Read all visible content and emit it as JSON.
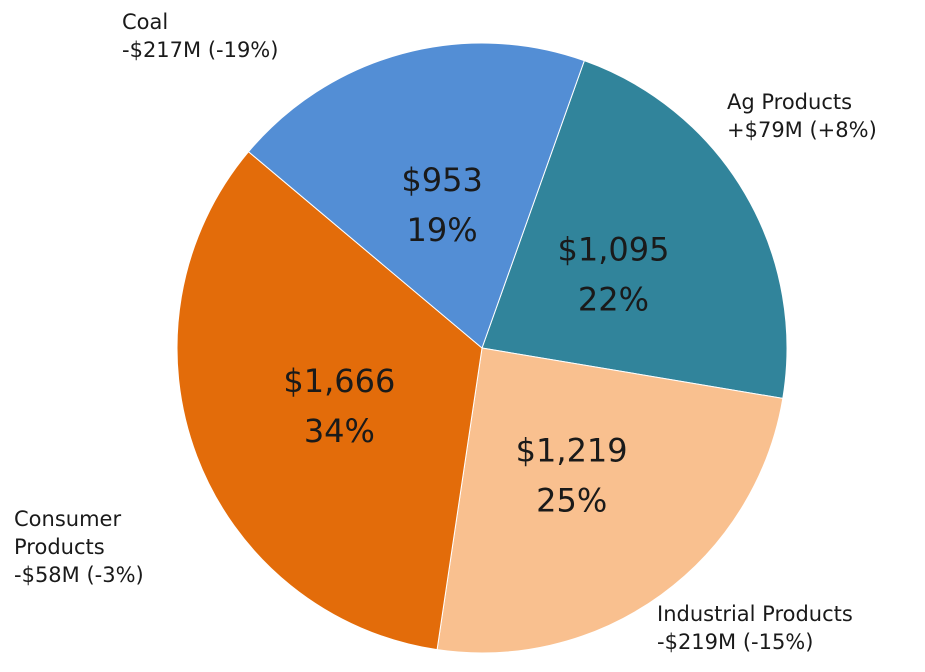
{
  "chart_data": {
    "type": "pie",
    "categories": [
      "Ag Products",
      "Industrial Products",
      "Consumer Products",
      "Coal"
    ],
    "values": [
      1095,
      1219,
      1666,
      953
    ],
    "value_labels": [
      "$1,095",
      "$1,219",
      "$1,666",
      "$953"
    ],
    "percent_labels": [
      "22%",
      "25%",
      "34%",
      "19%"
    ],
    "change_labels": [
      "+$79M (+8%)",
      "-$219M (-15%)",
      "-$58M (-3%)",
      "-$217M (-19%)"
    ],
    "colors": [
      "#31849b",
      "#f9c08f",
      "#e36c0a",
      "#538ed5"
    ]
  }
}
